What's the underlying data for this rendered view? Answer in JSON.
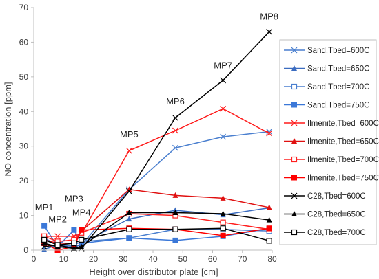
{
  "chart_data": {
    "type": "line",
    "xlabel": "Height over distributor plate [cm]",
    "ylabel": "NO concentration [ppm]",
    "xlim": [
      0,
      80
    ],
    "ylim": [
      0,
      70
    ],
    "xticks": [
      0,
      10,
      20,
      30,
      40,
      50,
      60,
      70,
      80
    ],
    "yticks": [
      0,
      10,
      20,
      30,
      40,
      50,
      60,
      70
    ],
    "grid": false,
    "legend_position": "right",
    "x": [
      3.5,
      8,
      13.5,
      16,
      32,
      47.5,
      63.5,
      79
    ],
    "annotations": [
      {
        "text": "MP1",
        "x": 3.5,
        "y": 11.5
      },
      {
        "text": "MP2",
        "x": 8,
        "y": 8
      },
      {
        "text": "MP3",
        "x": 13.5,
        "y": 14
      },
      {
        "text": "MP4",
        "x": 16,
        "y": 10
      },
      {
        "text": "MP5",
        "x": 32,
        "y": 32.5
      },
      {
        "text": "MP6",
        "x": 47.5,
        "y": 42
      },
      {
        "text": "MP7",
        "x": 63.5,
        "y": 52.5
      },
      {
        "text": "MP8",
        "x": 79,
        "y": 66.5
      }
    ],
    "series": [
      {
        "name": "Sand,Tbed=600C",
        "color": "#4a7fcf",
        "marker": "x",
        "values": [
          3.5,
          1.5,
          1.0,
          1.5,
          17.5,
          29.5,
          32.7,
          34.2
        ]
      },
      {
        "name": "Sand,Tbed=650C",
        "color": "#3b6cc0",
        "marker": "triangle",
        "values": [
          0.2,
          1.5,
          0.5,
          2.0,
          9.0,
          11.5,
          10.2,
          12.2
        ]
      },
      {
        "name": "Sand,Tbed=700C",
        "color": "#4a7fcf",
        "marker": "square-open",
        "values": [
          2.0,
          1.0,
          1.5,
          2.5,
          3.5,
          6.0,
          6.0,
          5.5
        ]
      },
      {
        "name": "Sand,Tbed=750C",
        "color": "#3b78d8",
        "marker": "square",
        "values": [
          7.0,
          1.0,
          5.8,
          2.0,
          3.5,
          2.8,
          4.0,
          6.2
        ]
      },
      {
        "name": "Ilmenite,Tbed=600C",
        "color": "#ff1a1a",
        "marker": "x",
        "values": [
          4.0,
          4.0,
          4.0,
          4.8,
          28.7,
          34.5,
          40.8,
          33.7
        ]
      },
      {
        "name": "Ilmenite,Tbed=650C",
        "color": "#e01010",
        "marker": "triangle",
        "values": [
          3.0,
          2.0,
          2.0,
          5.5,
          17.5,
          15.8,
          15.0,
          12.3
        ]
      },
      {
        "name": "Ilmenite,Tbed=700C",
        "color": "#ff2020",
        "marker": "square-open",
        "values": [
          4.0,
          2.5,
          3.0,
          5.0,
          10.5,
          10.0,
          8.0,
          6.0
        ]
      },
      {
        "name": "Ilmenite,Tbed=750C",
        "color": "#ff0000",
        "marker": "square",
        "values": [
          2.0,
          0.0,
          1.0,
          5.8,
          6.3,
          6.0,
          4.2,
          6.3
        ]
      },
      {
        "name": "C28,Tbed=600C",
        "color": "#000000",
        "marker": "x",
        "values": [
          1.0,
          1.5,
          0.5,
          0.5,
          17.0,
          38.2,
          49.0,
          63.0
        ]
      },
      {
        "name": "C28,Tbed=650C",
        "color": "#000000",
        "marker": "triangle",
        "values": [
          2.0,
          1.0,
          0.5,
          1.0,
          10.8,
          10.8,
          10.5,
          8.7
        ]
      },
      {
        "name": "C28,Tbed=700C",
        "color": "#000000",
        "marker": "square-open",
        "values": [
          3.0,
          1.5,
          2.0,
          3.0,
          6.0,
          6.0,
          6.3,
          2.7
        ]
      }
    ]
  }
}
